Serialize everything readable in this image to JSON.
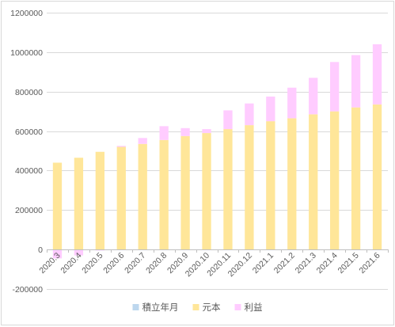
{
  "chart_data": {
    "type": "bar",
    "stacked": true,
    "categories": [
      "2020.3",
      "2020.4",
      "2020.5",
      "2020.6",
      "2020.7",
      "2020.8",
      "2020.9",
      "2020.10",
      "2020.11",
      "2020.12",
      "2021.1",
      "2021.2",
      "2021.3",
      "2021.4",
      "2021.5",
      "2021.6"
    ],
    "series": [
      {
        "name": "積立年月",
        "color": "#bdd7ee",
        "values": [
          0,
          0,
          0,
          0,
          0,
          0,
          0,
          0,
          0,
          0,
          0,
          0,
          0,
          0,
          0,
          0
        ]
      },
      {
        "name": "元本",
        "color": "#ffe699",
        "values": [
          440000,
          465000,
          495000,
          520000,
          535000,
          555000,
          575000,
          590000,
          610000,
          630000,
          650000,
          665000,
          685000,
          700000,
          720000,
          735000
        ]
      },
      {
        "name": "利益",
        "color": "#ffccff",
        "values": [
          -45000,
          -30000,
          -5000,
          5000,
          30000,
          70000,
          40000,
          20000,
          95000,
          110000,
          125000,
          155000,
          185000,
          250000,
          265000,
          305000
        ]
      }
    ],
    "ylim": [
      -200000,
      1200000
    ],
    "yticks": [
      "-200000",
      "0",
      "200000",
      "400000",
      "600000",
      "800000",
      "1000000",
      "1200000"
    ],
    "grid": true,
    "legend_position": "bottom"
  }
}
